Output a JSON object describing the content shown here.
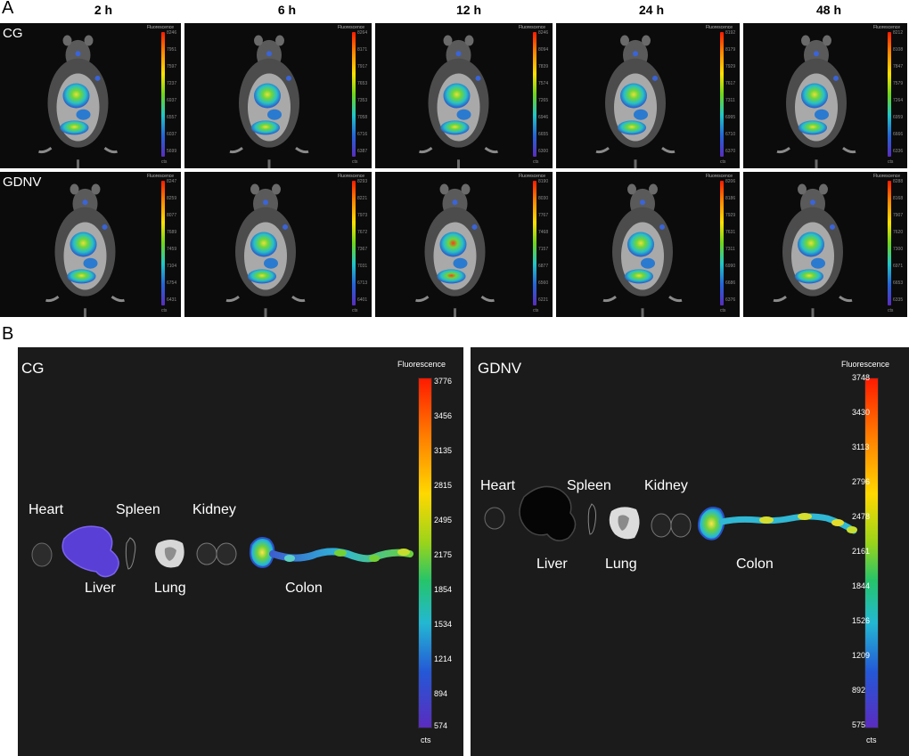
{
  "panelA": {
    "letter": "A",
    "times": [
      "2 h",
      "6 h",
      "12 h",
      "24 h",
      "48 h"
    ],
    "rows": [
      {
        "group": "CG",
        "cells": [
          {
            "ticks": [
              "8246",
              "7951",
              "7597",
              "7237",
              "6937",
              "6557",
              "6037",
              "5699"
            ]
          },
          {
            "ticks": [
              "8264",
              "8171",
              "7917",
              "7653",
              "7353",
              "7058",
              "6716",
              "6387"
            ]
          },
          {
            "ticks": [
              "8246",
              "8094",
              "7839",
              "7574",
              "7265",
              "6946",
              "6655",
              "6300"
            ]
          },
          {
            "ticks": [
              "8192",
              "8179",
              "7929",
              "7617",
              "7311",
              "6995",
              "6710",
              "6370"
            ]
          },
          {
            "ticks": [
              "8212",
              "8108",
              "7847",
              "7579",
              "7264",
              "6959",
              "6666",
              "6336"
            ]
          }
        ]
      },
      {
        "group": "GDNV",
        "cells": [
          {
            "ticks": [
              "8247",
              "8259",
              "8077",
              "7689",
              "7459",
              "7104",
              "6754",
              "6431"
            ]
          },
          {
            "ticks": [
              "8293",
              "8221",
              "7973",
              "7672",
              "7367",
              "7031",
              "6713",
              "6401"
            ]
          },
          {
            "ticks": [
              "8190",
              "8030",
              "7767",
              "7468",
              "7157",
              "6877",
              "6560",
              "6221"
            ]
          },
          {
            "ticks": [
              "8206",
              "8186",
              "7929",
              "7631",
              "7311",
              "6990",
              "6686",
              "6376"
            ]
          },
          {
            "ticks": [
              "8288",
              "8168",
              "7907",
              "7620",
              "7300",
              "6971",
              "6653",
              "6335"
            ]
          }
        ]
      }
    ],
    "legend_title": "Fluorescence",
    "unit": "cts"
  },
  "panelB": {
    "letter": "B",
    "legend_title": "Fluorescence",
    "unit": "cts",
    "panels": [
      {
        "group": "CG",
        "organs": {
          "heart": "Heart",
          "liver": "Liver",
          "spleen": "Spleen",
          "lung": "Lung",
          "kidney": "Kidney",
          "colon": "Colon"
        },
        "ticks": [
          "3776",
          "3456",
          "3135",
          "2815",
          "2495",
          "2175",
          "1854",
          "1534",
          "1214",
          "894",
          "574"
        ]
      },
      {
        "group": "GDNV",
        "organs": {
          "heart": "Heart",
          "liver": "Liver",
          "spleen": "Spleen",
          "lung": "Lung",
          "kidney": "Kidney",
          "colon": "Colon"
        },
        "ticks": [
          "3748",
          "3430",
          "3113",
          "2796",
          "2478",
          "2161",
          "1844",
          "1526",
          "1209",
          "892",
          "575"
        ]
      }
    ]
  }
}
